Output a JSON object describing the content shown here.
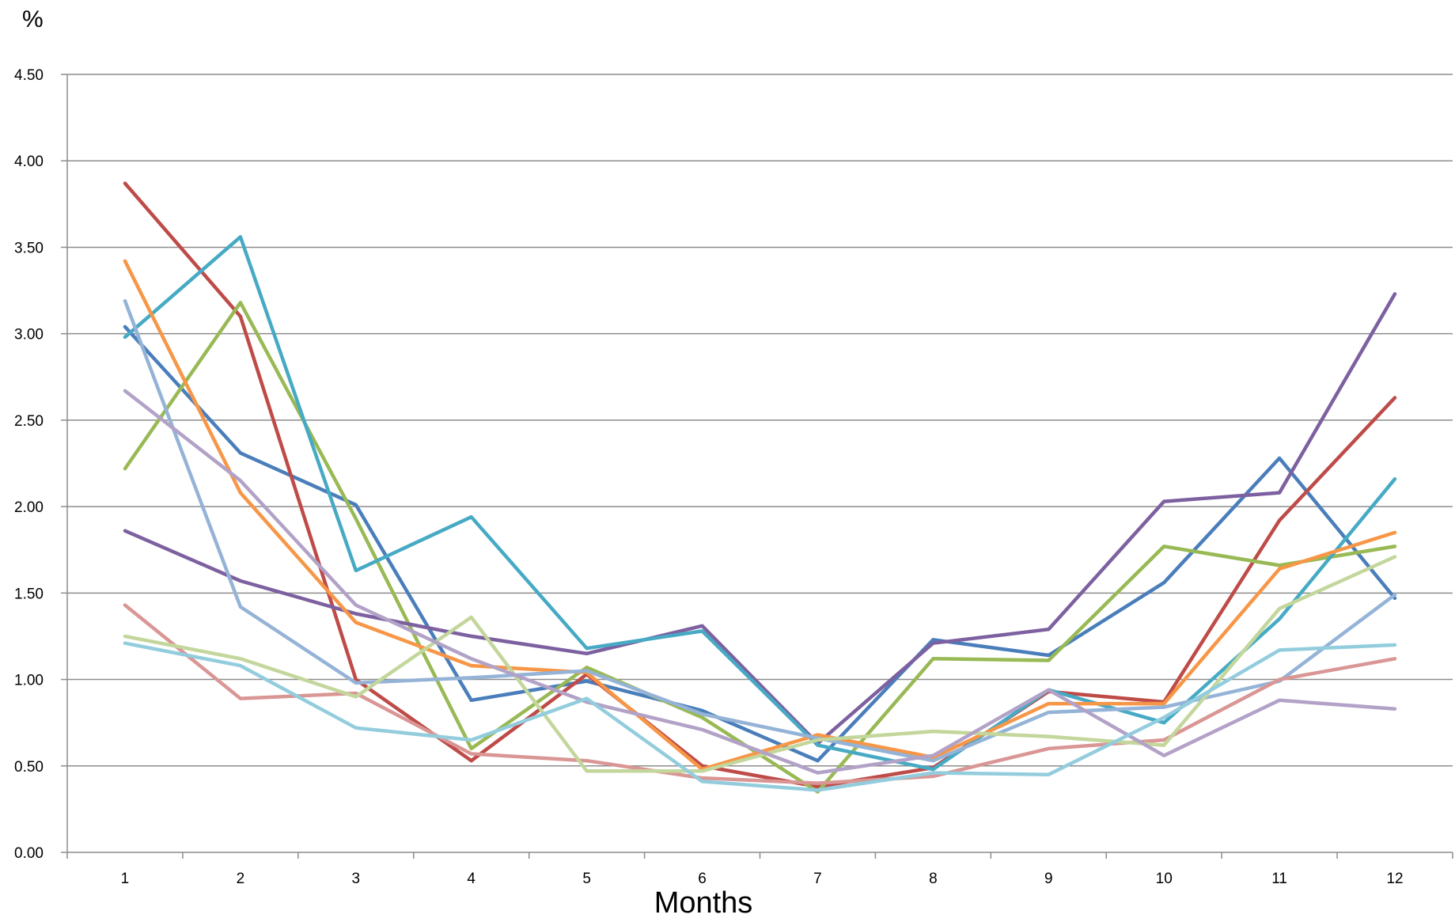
{
  "chart_data": {
    "type": "line",
    "title": "",
    "xlabel": "Months",
    "ylabel": "%",
    "ylim": [
      0,
      4.5
    ],
    "y_ticks": [
      "0.00",
      "0.50",
      "1.00",
      "1.50",
      "2.00",
      "2.50",
      "3.00",
      "3.50",
      "4.00",
      "4.50"
    ],
    "categories": [
      "1",
      "2",
      "3",
      "4",
      "5",
      "6",
      "7",
      "8",
      "9",
      "10",
      "11",
      "12"
    ],
    "grid": "horizontal",
    "series": [
      {
        "color": "#4a7ebb",
        "values": [
          3.04,
          2.31,
          2.01,
          0.88,
          0.99,
          0.82,
          0.53,
          1.23,
          1.14,
          1.56,
          2.28,
          1.47
        ]
      },
      {
        "color": "#be4b48",
        "values": [
          3.87,
          3.1,
          1.0,
          0.53,
          1.03,
          0.5,
          0.38,
          0.49,
          0.93,
          0.87,
          1.92,
          2.63
        ]
      },
      {
        "color": "#98b954",
        "values": [
          2.22,
          3.18,
          1.93,
          0.6,
          1.07,
          0.78,
          0.35,
          1.12,
          1.11,
          1.77,
          1.66,
          1.77
        ]
      },
      {
        "color": "#7d60a0",
        "values": [
          1.86,
          1.57,
          1.38,
          1.25,
          1.15,
          1.31,
          0.63,
          1.21,
          1.29,
          2.03,
          2.08,
          3.23
        ]
      },
      {
        "color": "#46aac5",
        "values": [
          2.98,
          3.56,
          1.63,
          1.94,
          1.18,
          1.28,
          0.62,
          0.48,
          0.94,
          0.75,
          1.35,
          2.16
        ]
      },
      {
        "color": "#f79646",
        "values": [
          3.42,
          2.08,
          1.33,
          1.08,
          1.04,
          0.48,
          0.68,
          0.55,
          0.86,
          0.86,
          1.64,
          1.85
        ]
      },
      {
        "color": "#95b3d7",
        "values": [
          3.19,
          1.42,
          0.98,
          1.01,
          1.05,
          0.8,
          0.66,
          0.53,
          0.81,
          0.84,
          0.99,
          1.49
        ]
      },
      {
        "color": "#d99694",
        "values": [
          1.43,
          0.89,
          0.92,
          0.57,
          0.53,
          0.43,
          0.4,
          0.44,
          0.6,
          0.65,
          1.0,
          1.12
        ]
      },
      {
        "color": "#c3d69b",
        "values": [
          1.25,
          1.12,
          0.9,
          1.36,
          0.47,
          0.47,
          0.65,
          0.7,
          0.67,
          0.62,
          1.41,
          1.71
        ]
      },
      {
        "color": "#b2a2c7",
        "values": [
          2.67,
          2.15,
          1.43,
          1.12,
          0.87,
          0.71,
          0.46,
          0.56,
          0.94,
          0.56,
          0.88,
          0.83
        ]
      },
      {
        "color": "#93cddd",
        "values": [
          1.21,
          1.08,
          0.72,
          0.65,
          0.89,
          0.41,
          0.36,
          0.46,
          0.45,
          0.78,
          1.17,
          1.2
        ]
      }
    ]
  }
}
